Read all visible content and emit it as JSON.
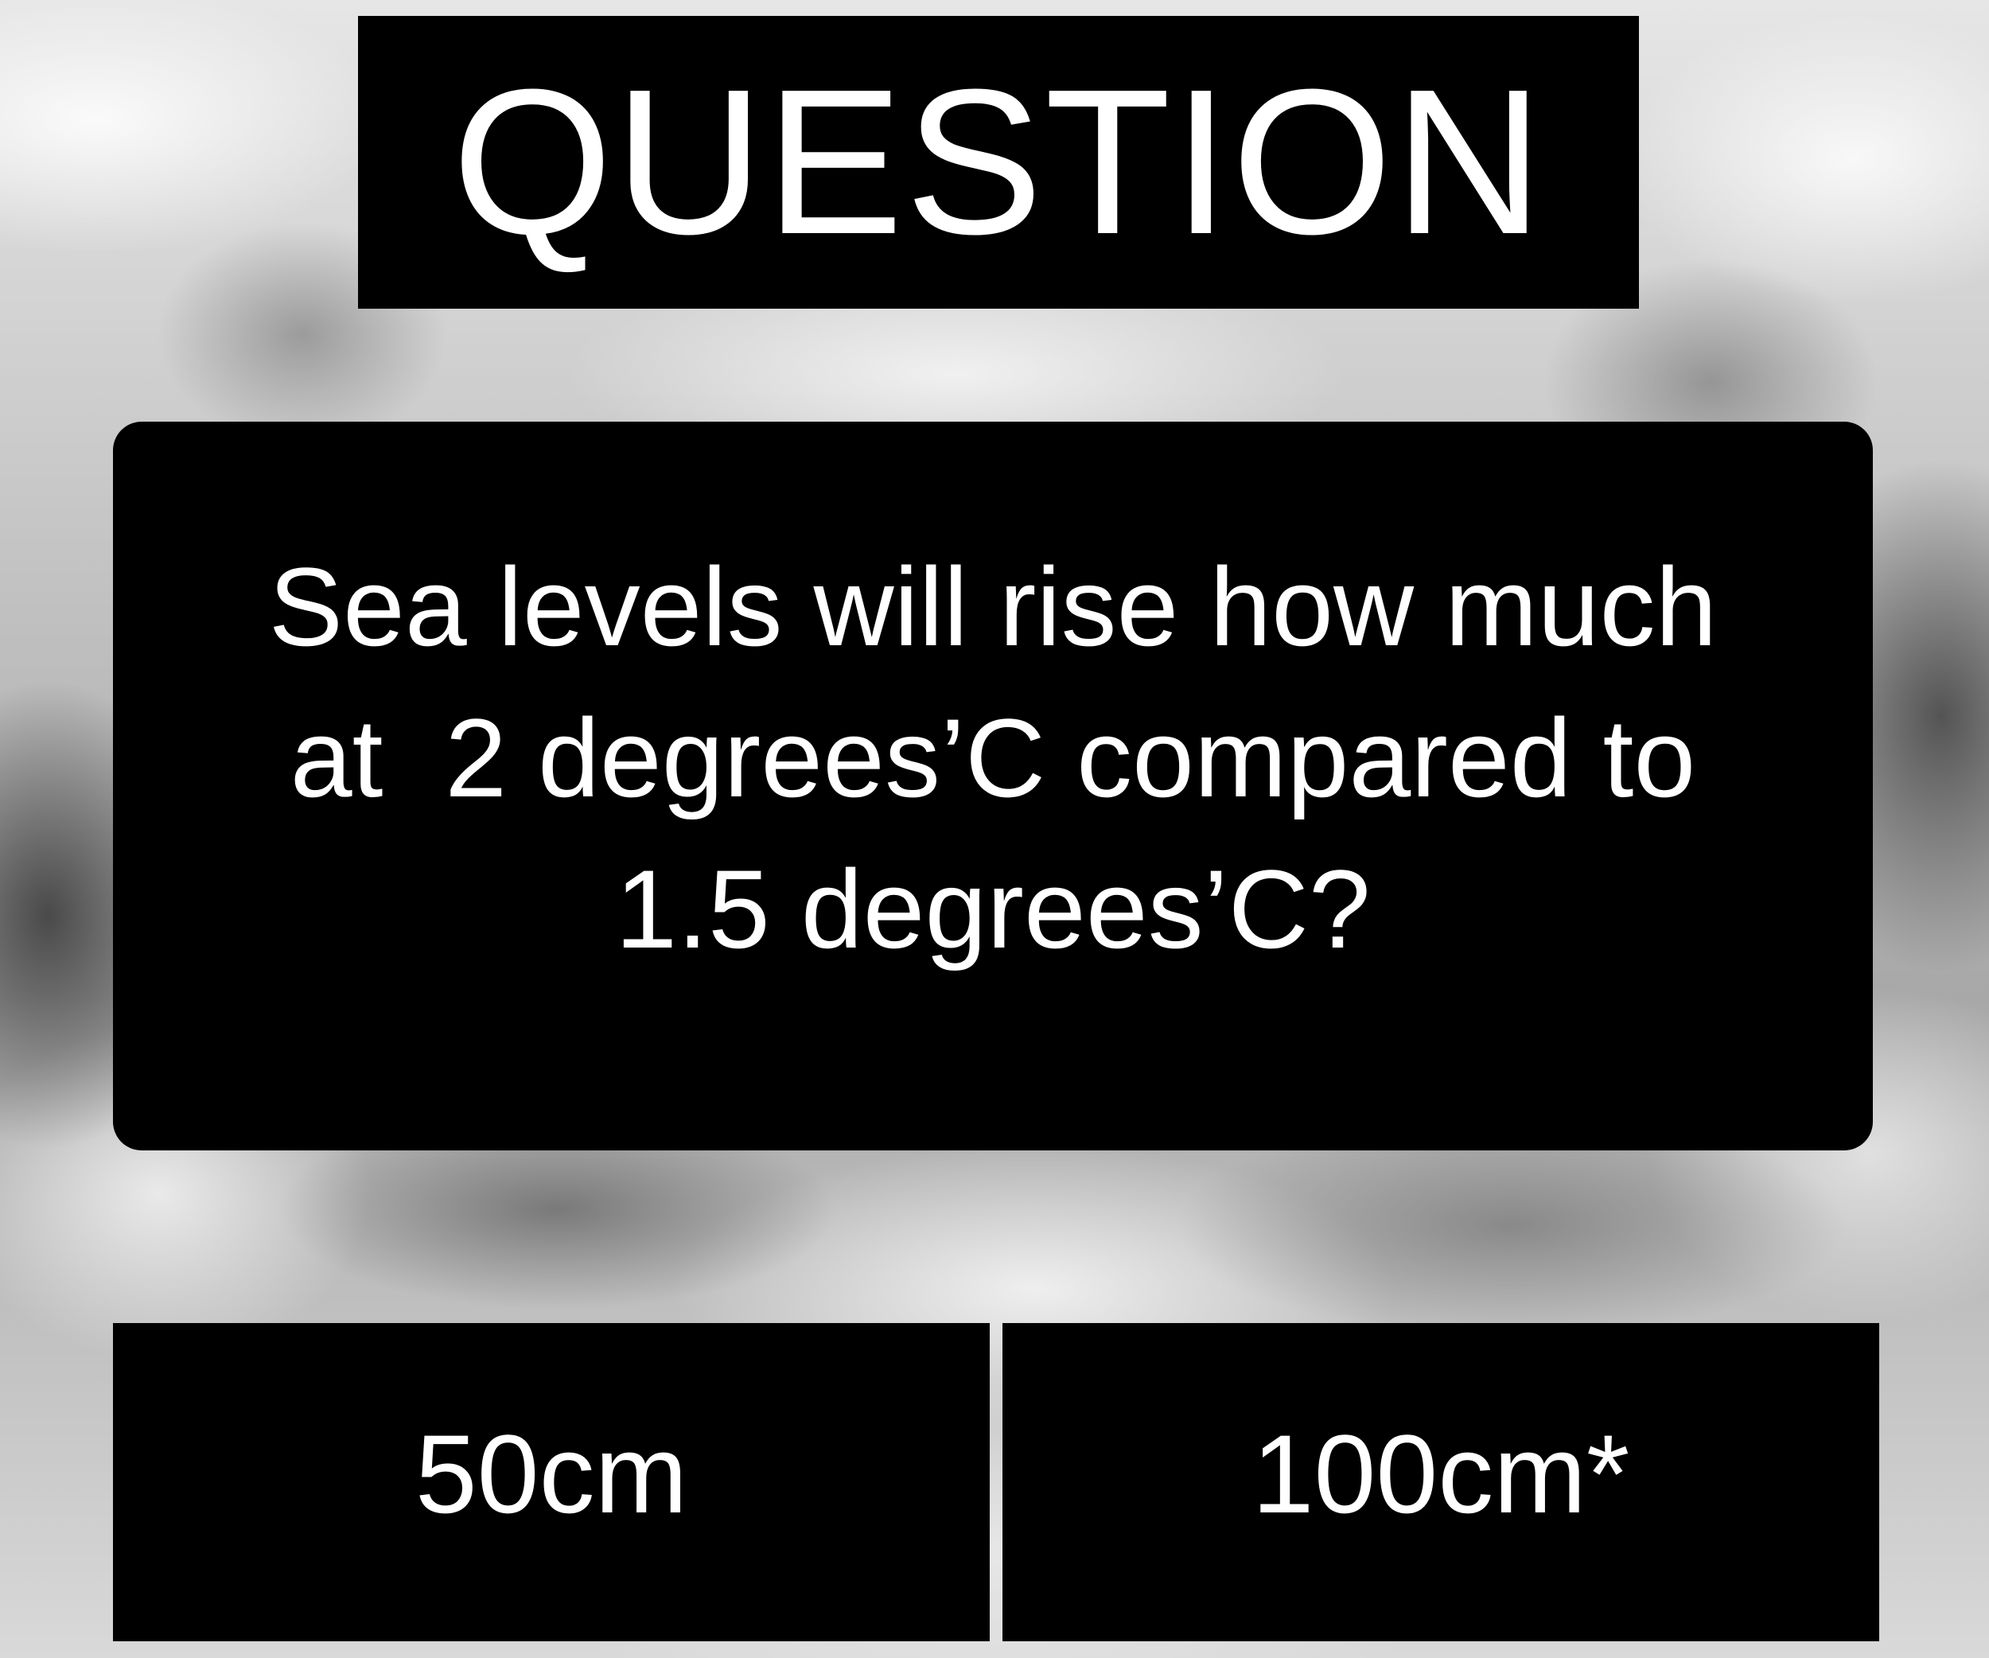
{
  "title": "QUESTION",
  "question": {
    "lines": [
      "Sea levels will rise how much",
      "at  2 degrees’C compared to",
      "1.5 degrees’C?"
    ]
  },
  "answers": [
    {
      "label": "50cm"
    },
    {
      "label": "100cm*"
    }
  ]
}
